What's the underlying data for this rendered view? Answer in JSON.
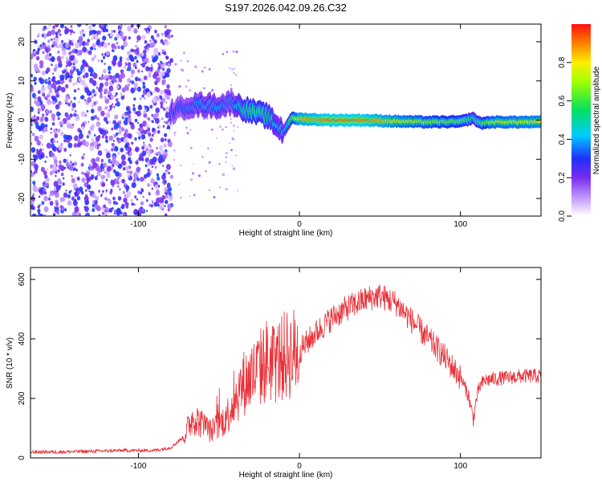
{
  "chart_data": [
    {
      "type": "heatmap",
      "title": "S197.2026.042.09.26.C32",
      "xlabel": "Height of straight line (km)",
      "ylabel": "Frequency (Hz)",
      "xlim": [
        -167,
        150
      ],
      "ylim": [
        -24.5,
        24.5
      ],
      "xticks": [
        -100,
        0,
        100
      ],
      "yticks": [
        -20,
        -10,
        0,
        10,
        20
      ],
      "colorbar": {
        "label": "Normalized spectral amplitude",
        "range": [
          0.0,
          1.0
        ],
        "ticks": [
          "0.0",
          "0.2",
          "0.4",
          "0.6",
          "0.8"
        ]
      },
      "ridge": {
        "x": [
          -80,
          -70,
          -60,
          -50,
          -42,
          -35,
          -28,
          -20,
          -15,
          -10,
          -5,
          0,
          20,
          40,
          60,
          80,
          100,
          108,
          112,
          120,
          150
        ],
        "freq": [
          2,
          3.5,
          4,
          3.5,
          4.5,
          3,
          2,
          1,
          -1,
          -3,
          0.5,
          0.3,
          0,
          0,
          -0.3,
          -0.5,
          -0.4,
          0.5,
          -0.8,
          -0.5,
          -0.5
        ],
        "amplitude": [
          0.3,
          0.35,
          0.4,
          0.4,
          0.35,
          0.55,
          0.6,
          0.55,
          0.45,
          0.4,
          0.65,
          0.85,
          0.95,
          0.93,
          0.8,
          0.7,
          0.65,
          0.55,
          0.6,
          0.75,
          0.8
        ]
      },
      "noise_region_x": [
        -167,
        -79
      ]
    },
    {
      "type": "line",
      "xlabel": "Height of straight line (km)",
      "ylabel": "SNR (10 * v/v)",
      "xlim": [
        -167,
        150
      ],
      "ylim": [
        0,
        640
      ],
      "xticks": [
        -100,
        0,
        100
      ],
      "yticks": [
        0,
        200,
        400,
        600
      ],
      "series": [
        {
          "name": "SNR",
          "color": "#e8323a",
          "x": [
            -167,
            -150,
            -130,
            -110,
            -90,
            -80,
            -72,
            -66,
            -62,
            -55,
            -50,
            -45,
            -40,
            -35,
            -30,
            -25,
            -20,
            -15,
            -10,
            -5,
            0,
            10,
            20,
            30,
            40,
            45,
            50,
            60,
            70,
            80,
            90,
            100,
            105,
            108,
            110,
            112,
            115,
            120,
            130,
            140,
            150
          ],
          "y": [
            20,
            20,
            22,
            25,
            25,
            35,
            70,
            140,
            120,
            90,
            110,
            140,
            200,
            250,
            270,
            300,
            330,
            320,
            340,
            350,
            360,
            420,
            470,
            505,
            530,
            540,
            545,
            520,
            460,
            400,
            340,
            270,
            210,
            130,
            200,
            240,
            260,
            265,
            270,
            275,
            275
          ]
        }
      ]
    }
  ],
  "colors": {
    "line": "#e8323a",
    "grid": "#000000",
    "noise": "#8a4ff0"
  }
}
